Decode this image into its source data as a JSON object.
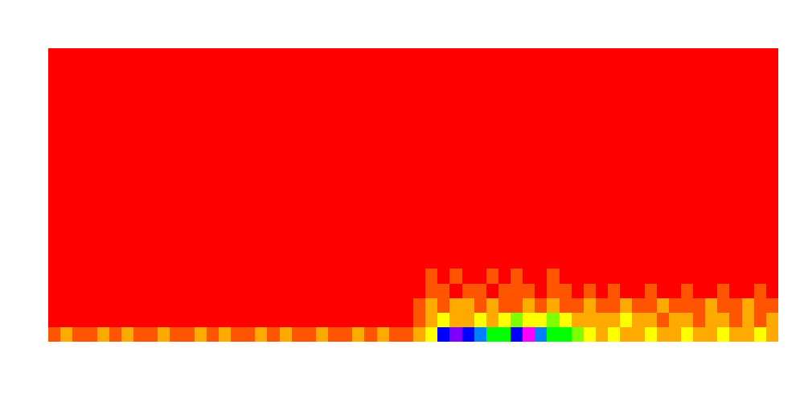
{
  "chart_data": {
    "type": "heatmap",
    "tick_labels": false,
    "xlim": [
      0,
      60
    ],
    "ylim": [
      0,
      20
    ],
    "zlim": [
      0,
      10
    ],
    "cells": [
      [
        1,
        2,
        1,
        1,
        2,
        1,
        2,
        1,
        1,
        2,
        1,
        1,
        2,
        1,
        2,
        1,
        1,
        2,
        1,
        2,
        1,
        1,
        2,
        1,
        1,
        2,
        1,
        2,
        1,
        1,
        2,
        3,
        8,
        9,
        8,
        7,
        5,
        5,
        8,
        10,
        7,
        5,
        5,
        4,
        3,
        2,
        3,
        2,
        2,
        3,
        2,
        2,
        3,
        2,
        2,
        3,
        2,
        2,
        3,
        2
      ],
      [
        0,
        0,
        0,
        0,
        0,
        0,
        0,
        0,
        0,
        0,
        0,
        0,
        0,
        0,
        0,
        0,
        0,
        0,
        0,
        0,
        0,
        0,
        0,
        0,
        0,
        0,
        0,
        0,
        0,
        0,
        1,
        2,
        3,
        2,
        2,
        3,
        2,
        3,
        4,
        3,
        3,
        4,
        3,
        2,
        2,
        2,
        2,
        3,
        2,
        2,
        1,
        2,
        2,
        1,
        2,
        2,
        1,
        2,
        1,
        2
      ],
      [
        0,
        0,
        0,
        0,
        0,
        0,
        0,
        0,
        0,
        0,
        0,
        0,
        0,
        0,
        0,
        0,
        0,
        0,
        0,
        0,
        0,
        0,
        0,
        0,
        0,
        0,
        0,
        0,
        0,
        0,
        1,
        2,
        1,
        2,
        2,
        1,
        2,
        1,
        1,
        2,
        1,
        2,
        1,
        1,
        2,
        1,
        1,
        2,
        1,
        1,
        2,
        1,
        1,
        1,
        2,
        1,
        1,
        2,
        1,
        1
      ],
      [
        0,
        0,
        0,
        0,
        0,
        0,
        0,
        0,
        0,
        0,
        0,
        0,
        0,
        0,
        0,
        0,
        0,
        0,
        0,
        0,
        0,
        0,
        0,
        0,
        0,
        0,
        0,
        0,
        0,
        0,
        0,
        1,
        1,
        0,
        1,
        1,
        0,
        1,
        1,
        1,
        0,
        1,
        1,
        0,
        1,
        0,
        1,
        0,
        0,
        1,
        0,
        0,
        1,
        0,
        0,
        1,
        0,
        0,
        1,
        0
      ],
      [
        0,
        0,
        0,
        0,
        0,
        0,
        0,
        0,
        0,
        0,
        0,
        0,
        0,
        0,
        0,
        0,
        0,
        0,
        0,
        0,
        0,
        0,
        0,
        0,
        0,
        0,
        0,
        0,
        0,
        0,
        0,
        1,
        0,
        1,
        0,
        0,
        1,
        0,
        1,
        0,
        0,
        1,
        0,
        0,
        0,
        0,
        0,
        0,
        0,
        0,
        0,
        0,
        0,
        0,
        0,
        0,
        0,
        0,
        0,
        0
      ],
      [
        0,
        0,
        0,
        0,
        0,
        0,
        0,
        0,
        0,
        0,
        0,
        0,
        0,
        0,
        0,
        0,
        0,
        0,
        0,
        0,
        0,
        0,
        0,
        0,
        0,
        0,
        0,
        0,
        0,
        0,
        0,
        0,
        0,
        0,
        0,
        0,
        0,
        0,
        0,
        0,
        0,
        0,
        0,
        0,
        0,
        0,
        0,
        0,
        0,
        0,
        0,
        0,
        0,
        0,
        0,
        0,
        0,
        0,
        0,
        0
      ],
      [
        0,
        0,
        0,
        0,
        0,
        0,
        0,
        0,
        0,
        0,
        0,
        0,
        0,
        0,
        0,
        0,
        0,
        0,
        0,
        0,
        0,
        0,
        0,
        0,
        0,
        0,
        0,
        0,
        0,
        0,
        0,
        0,
        0,
        0,
        0,
        0,
        0,
        0,
        0,
        0,
        0,
        0,
        0,
        0,
        0,
        0,
        0,
        0,
        0,
        0,
        0,
        0,
        0,
        0,
        0,
        0,
        0,
        0,
        0,
        0
      ],
      [
        0,
        0,
        0,
        0,
        0,
        0,
        0,
        0,
        0,
        0,
        0,
        0,
        0,
        0,
        0,
        0,
        0,
        0,
        0,
        0,
        0,
        0,
        0,
        0,
        0,
        0,
        0,
        0,
        0,
        0,
        0,
        0,
        0,
        0,
        0,
        0,
        0,
        0,
        0,
        0,
        0,
        0,
        0,
        0,
        0,
        0,
        0,
        0,
        0,
        0,
        0,
        0,
        0,
        0,
        0,
        0,
        0,
        0,
        0,
        0
      ],
      [
        0,
        0,
        0,
        0,
        0,
        0,
        0,
        0,
        0,
        0,
        0,
        0,
        0,
        0,
        0,
        0,
        0,
        0,
        0,
        0,
        0,
        0,
        0,
        0,
        0,
        0,
        0,
        0,
        0,
        0,
        0,
        0,
        0,
        0,
        0,
        0,
        0,
        0,
        0,
        0,
        0,
        0,
        0,
        0,
        0,
        0,
        0,
        0,
        0,
        0,
        0,
        0,
        0,
        0,
        0,
        0,
        0,
        0,
        0,
        0
      ],
      [
        0,
        0,
        0,
        0,
        0,
        0,
        0,
        0,
        0,
        0,
        0,
        0,
        0,
        0,
        0,
        0,
        0,
        0,
        0,
        0,
        0,
        0,
        0,
        0,
        0,
        0,
        0,
        0,
        0,
        0,
        0,
        0,
        0,
        0,
        0,
        0,
        0,
        0,
        0,
        0,
        0,
        0,
        0,
        0,
        0,
        0,
        0,
        0,
        0,
        0,
        0,
        0,
        0,
        0,
        0,
        0,
        0,
        0,
        0,
        0
      ],
      [
        0,
        0,
        0,
        0,
        0,
        0,
        0,
        0,
        0,
        0,
        0,
        0,
        0,
        0,
        0,
        0,
        0,
        0,
        0,
        0,
        0,
        0,
        0,
        0,
        0,
        0,
        0,
        0,
        0,
        0,
        0,
        0,
        0,
        0,
        0,
        0,
        0,
        0,
        0,
        0,
        0,
        0,
        0,
        0,
        0,
        0,
        0,
        0,
        0,
        0,
        0,
        0,
        0,
        0,
        0,
        0,
        0,
        0,
        0,
        0
      ],
      [
        0,
        0,
        0,
        0,
        0,
        0,
        0,
        0,
        0,
        0,
        0,
        0,
        0,
        0,
        0,
        0,
        0,
        0,
        0,
        0,
        0,
        0,
        0,
        0,
        0,
        0,
        0,
        0,
        0,
        0,
        0,
        0,
        0,
        0,
        0,
        0,
        0,
        0,
        0,
        0,
        0,
        0,
        0,
        0,
        0,
        0,
        0,
        0,
        0,
        0,
        0,
        0,
        0,
        0,
        0,
        0,
        0,
        0,
        0,
        0
      ],
      [
        0,
        0,
        0,
        0,
        0,
        0,
        0,
        0,
        0,
        0,
        0,
        0,
        0,
        0,
        0,
        0,
        0,
        0,
        0,
        0,
        0,
        0,
        0,
        0,
        0,
        0,
        0,
        0,
        0,
        0,
        0,
        0,
        0,
        0,
        0,
        0,
        0,
        0,
        0,
        0,
        0,
        0,
        0,
        0,
        0,
        0,
        0,
        0,
        0,
        0,
        0,
        0,
        0,
        0,
        0,
        0,
        0,
        0,
        0,
        0
      ],
      [
        0,
        0,
        0,
        0,
        0,
        0,
        0,
        0,
        0,
        0,
        0,
        0,
        0,
        0,
        0,
        0,
        0,
        0,
        0,
        0,
        0,
        0,
        0,
        0,
        0,
        0,
        0,
        0,
        0,
        0,
        0,
        0,
        0,
        0,
        0,
        0,
        0,
        0,
        0,
        0,
        0,
        0,
        0,
        0,
        0,
        0,
        0,
        0,
        0,
        0,
        0,
        0,
        0,
        0,
        0,
        0,
        0,
        0,
        0,
        0
      ],
      [
        0,
        0,
        0,
        0,
        0,
        0,
        0,
        0,
        0,
        0,
        0,
        0,
        0,
        0,
        0,
        0,
        0,
        0,
        0,
        0,
        0,
        0,
        0,
        0,
        0,
        0,
        0,
        0,
        0,
        0,
        0,
        0,
        0,
        0,
        0,
        0,
        0,
        0,
        0,
        0,
        0,
        0,
        0,
        0,
        0,
        0,
        0,
        0,
        0,
        0,
        0,
        0,
        0,
        0,
        0,
        0,
        0,
        0,
        0,
        0
      ],
      [
        0,
        0,
        0,
        0,
        0,
        0,
        0,
        0,
        0,
        0,
        0,
        0,
        0,
        0,
        0,
        0,
        0,
        0,
        0,
        0,
        0,
        0,
        0,
        0,
        0,
        0,
        0,
        0,
        0,
        0,
        0,
        0,
        0,
        0,
        0,
        0,
        0,
        0,
        0,
        0,
        0,
        0,
        0,
        0,
        0,
        0,
        0,
        0,
        0,
        0,
        0,
        0,
        0,
        0,
        0,
        0,
        0,
        0,
        0,
        0
      ],
      [
        0,
        0,
        0,
        0,
        0,
        0,
        0,
        0,
        0,
        0,
        0,
        0,
        0,
        0,
        0,
        0,
        0,
        0,
        0,
        0,
        0,
        0,
        0,
        0,
        0,
        0,
        0,
        0,
        0,
        0,
        0,
        0,
        0,
        0,
        0,
        0,
        0,
        0,
        0,
        0,
        0,
        0,
        0,
        0,
        0,
        0,
        0,
        0,
        0,
        0,
        0,
        0,
        0,
        0,
        0,
        0,
        0,
        0,
        0,
        0
      ],
      [
        0,
        0,
        0,
        0,
        0,
        0,
        0,
        0,
        0,
        0,
        0,
        0,
        0,
        0,
        0,
        0,
        0,
        0,
        0,
        0,
        0,
        0,
        0,
        0,
        0,
        0,
        0,
        0,
        0,
        0,
        0,
        0,
        0,
        0,
        0,
        0,
        0,
        0,
        0,
        0,
        0,
        0,
        0,
        0,
        0,
        0,
        0,
        0,
        0,
        0,
        0,
        0,
        0,
        0,
        0,
        0,
        0,
        0,
        0,
        0
      ],
      [
        0,
        0,
        0,
        0,
        0,
        0,
        0,
        0,
        0,
        0,
        0,
        0,
        0,
        0,
        0,
        0,
        0,
        0,
        0,
        0,
        0,
        0,
        0,
        0,
        0,
        0,
        0,
        0,
        0,
        0,
        0,
        0,
        0,
        0,
        0,
        0,
        0,
        0,
        0,
        0,
        0,
        0,
        0,
        0,
        0,
        0,
        0,
        0,
        0,
        0,
        0,
        0,
        0,
        0,
        0,
        0,
        0,
        0,
        0,
        0
      ],
      [
        0,
        0,
        0,
        0,
        0,
        0,
        0,
        0,
        0,
        0,
        0,
        0,
        0,
        0,
        0,
        0,
        0,
        0,
        0,
        0,
        0,
        0,
        0,
        0,
        0,
        0,
        0,
        0,
        0,
        0,
        0,
        0,
        0,
        0,
        0,
        0,
        0,
        0,
        0,
        0,
        0,
        0,
        0,
        0,
        0,
        0,
        0,
        0,
        0,
        0,
        0,
        0,
        0,
        0,
        0,
        0,
        0,
        0,
        0,
        0
      ]
    ]
  }
}
